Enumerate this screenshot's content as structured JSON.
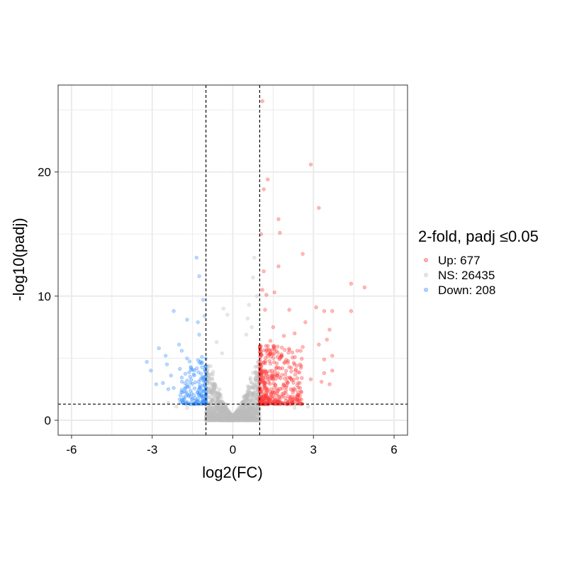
{
  "chart_data": {
    "type": "scatter",
    "title": "",
    "xlabel": "log2(FC)",
    "ylabel": "-log10(padj)",
    "xlim": [
      -6.5,
      6.5
    ],
    "ylim": [
      -1.2,
      27
    ],
    "x_ticks": [
      -6,
      -3,
      0,
      3,
      6
    ],
    "x_tick_labels": [
      "-6",
      "-3",
      "0",
      "3",
      "6"
    ],
    "y_ticks": [
      0,
      10,
      20
    ],
    "y_tick_labels": [
      "0",
      "10",
      "20"
    ],
    "grid": true,
    "thresholds": {
      "log2fc": [
        -1,
        1
      ],
      "neg_log10_padj": 1.301
    },
    "legend": {
      "title": "2-fold, padj ≤0.05",
      "position": "right",
      "entries": [
        {
          "label": "Up: 677",
          "color": "#ff3b3b"
        },
        {
          "label": "NS: 26435",
          "color": "#bdbdbd"
        },
        {
          "label": "Down: 208",
          "color": "#3b93ff"
        }
      ]
    },
    "series": [
      {
        "name": "Up",
        "color": "#ff3b3b",
        "points": [
          [
            1.1,
            25.7
          ],
          [
            2.9,
            20.6
          ],
          [
            1.3,
            19.4
          ],
          [
            1.15,
            18.6
          ],
          [
            3.2,
            17.1
          ],
          [
            1.7,
            16.2
          ],
          [
            1.05,
            15.0
          ],
          [
            1.75,
            15.1
          ],
          [
            2.6,
            13.4
          ],
          [
            1.15,
            12.0
          ],
          [
            1.7,
            12.4
          ],
          [
            4.4,
            11.0
          ],
          [
            4.9,
            10.7
          ],
          [
            1.1,
            10.5
          ],
          [
            1.25,
            10.1
          ],
          [
            1.55,
            10.3
          ],
          [
            4.4,
            8.8
          ],
          [
            3.4,
            8.8
          ],
          [
            3.7,
            8.8
          ],
          [
            3.1,
            9.1
          ],
          [
            1.2,
            8.9
          ],
          [
            2.1,
            8.9
          ],
          [
            2.7,
            7.9
          ],
          [
            1.5,
            7.5
          ],
          [
            3.6,
            7.3
          ],
          [
            2.3,
            7.0
          ],
          [
            3.5,
            6.5
          ],
          [
            1.9,
            6.8
          ],
          [
            3.2,
            6.1
          ],
          [
            2.6,
            5.9
          ],
          [
            1.4,
            6.4
          ],
          [
            3.7,
            5.2
          ],
          [
            3.4,
            4.9
          ],
          [
            2.4,
            5.6
          ],
          [
            3.7,
            4.0
          ],
          [
            3.4,
            3.8
          ],
          [
            2.9,
            3.3
          ],
          [
            3.3,
            3.1
          ],
          [
            3.6,
            2.9
          ],
          [
            2.5,
            2.6
          ]
        ],
        "dense_region": {
          "x": [
            1.0,
            2.6
          ],
          "y": [
            1.3,
            6.0
          ],
          "count": 420
        }
      },
      {
        "name": "NS",
        "color": "#bdbdbd",
        "points": [
          [
            0.8,
            13.1
          ],
          [
            0.75,
            11.5
          ],
          [
            0.6,
            9.3
          ],
          [
            0.55,
            8.2
          ],
          [
            -0.35,
            9.0
          ],
          [
            -0.2,
            8.5
          ],
          [
            0.5,
            6.9
          ],
          [
            0.7,
            7.5
          ],
          [
            -0.6,
            6.3
          ],
          [
            -0.4,
            5.4
          ],
          [
            -2.4,
            1.4
          ],
          [
            -2.1,
            1.1
          ],
          [
            -1.7,
            1.0
          ],
          [
            2.3,
            1.0
          ],
          [
            2.8,
            1.1
          ],
          [
            0.9,
            10.0
          ]
        ],
        "dense_region": {
          "x": [
            -1.0,
            1.0
          ],
          "y": [
            0.0,
            6.5
          ],
          "count": 1400
        }
      },
      {
        "name": "Down",
        "color": "#3b93ff",
        "points": [
          [
            -1.35,
            13.1
          ],
          [
            -1.25,
            11.6
          ],
          [
            -1.1,
            9.7
          ],
          [
            -2.2,
            8.8
          ],
          [
            -1.7,
            8.1
          ],
          [
            -1.3,
            7.9
          ],
          [
            -1.05,
            8.4
          ],
          [
            -2.75,
            5.8
          ],
          [
            -2.0,
            6.1
          ],
          [
            -1.9,
            5.6
          ],
          [
            -3.2,
            4.7
          ],
          [
            -3.05,
            4.0
          ],
          [
            -2.5,
            5.2
          ],
          [
            -2.45,
            4.5
          ],
          [
            -2.3,
            3.6
          ],
          [
            -2.6,
            3.0
          ],
          [
            -2.85,
            2.9
          ],
          [
            -2.2,
            2.6
          ],
          [
            -2.4,
            2.5
          ],
          [
            -1.7,
            3.2
          ],
          [
            -1.55,
            4.2
          ],
          [
            -1.45,
            3.7
          ],
          [
            -1.15,
            5.1
          ],
          [
            -1.25,
            6.9
          ]
        ],
        "dense_region": {
          "x": [
            -2.0,
            -1.0
          ],
          "y": [
            1.3,
            5.0
          ],
          "count": 160
        }
      }
    ]
  }
}
